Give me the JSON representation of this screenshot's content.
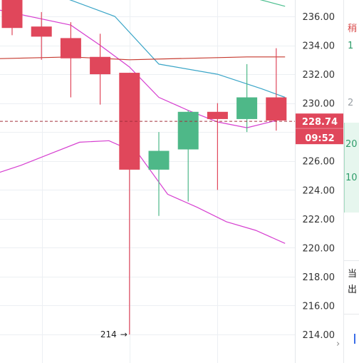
{
  "colors": {
    "up": "#4eb888",
    "down": "#e0475b",
    "boll_band": "#d63fd0",
    "ma_blue": "#3aa5c7",
    "ma_green": "#4cbf8f",
    "ma_red": "#c63a2f",
    "last_line": "#a3303c",
    "badge_bg": "#e0475b",
    "grid": "#eceff3",
    "axis_text": "#333333"
  },
  "chart_data": {
    "type": "candlestick",
    "title": "",
    "xlabel": "",
    "ylabel": "",
    "ylim": [
      213.3,
      238.6
    ],
    "yticks": [
      214,
      216,
      218,
      220,
      222,
      224,
      226,
      228,
      230,
      232,
      234,
      236
    ],
    "ytick_labels": [
      "214.00",
      "216.00",
      "218.00",
      "220.00",
      "222.00",
      "224.00",
      "226.00",
      "228.00",
      "230.00",
      "232.00",
      "234.00",
      "236.00"
    ],
    "grid": true,
    "candles": [
      {
        "index": 0,
        "open": 237.3,
        "high": 237.6,
        "low": 234.7,
        "close": 235.2
      },
      {
        "index": 1,
        "open": 235.3,
        "high": 236.3,
        "low": 233.0,
        "close": 234.6
      },
      {
        "index": 2,
        "open": 234.5,
        "high": 235.6,
        "low": 230.4,
        "close": 233.1
      },
      {
        "index": 3,
        "open": 233.2,
        "high": 234.8,
        "low": 229.9,
        "close": 232.0
      },
      {
        "index": 4,
        "open": 232.1,
        "high": 232.1,
        "low": 214.0,
        "close": 225.4
      },
      {
        "index": 5,
        "open": 225.4,
        "high": 228.0,
        "low": 222.2,
        "close": 226.7
      },
      {
        "index": 6,
        "open": 226.8,
        "high": 229.5,
        "low": 223.2,
        "close": 229.4
      },
      {
        "index": 7,
        "open": 229.4,
        "high": 230.0,
        "low": 224.0,
        "close": 228.9
      },
      {
        "index": 8,
        "open": 228.9,
        "high": 232.7,
        "low": 228.0,
        "close": 230.4
      },
      {
        "index": 9,
        "open": 230.4,
        "high": 233.8,
        "low": 228.1,
        "close": 228.8
      }
    ],
    "series": [
      {
        "role": "boll_upper",
        "x": [
          -2.2,
          2.0,
          3.0,
          4.0,
          5.0,
          6.0,
          7.0,
          8.0,
          9.0
        ],
        "values": [
          237.2,
          235.4,
          234.0,
          232.5,
          230.4,
          229.5,
          228.7,
          228.3,
          228.8
        ]
      },
      {
        "role": "boll_lower",
        "x": [
          -2.2,
          -1.4,
          -0.6,
          0.3,
          1.3,
          2.3,
          3.3,
          4.3,
          5.3,
          6.3,
          7.3,
          8.3,
          9.3
        ],
        "values": [
          224.2,
          224.6,
          225.1,
          225.7,
          226.5,
          227.3,
          227.4,
          226.5,
          223.7,
          222.8,
          221.8,
          221.2,
          220.3
        ]
      },
      {
        "role": "ma_blue",
        "x": [
          -0.6,
          1.1,
          3.5,
          5.0,
          7.0,
          8.5,
          9.3
        ],
        "values": [
          238.6,
          237.8,
          236.0,
          232.7,
          232.0,
          231.0,
          230.4
        ]
      },
      {
        "role": "ma_green",
        "x": [
          5.8,
          7.0,
          8.0,
          9.3
        ],
        "values": [
          238.6,
          237.9,
          237.4,
          236.7
        ]
      },
      {
        "role": "ma_red",
        "x": [
          -2.2,
          0.0,
          2.0,
          4.0,
          6.0,
          8.0,
          9.3
        ],
        "values": [
          233.0,
          233.1,
          233.2,
          233.0,
          233.1,
          233.2,
          233.2
        ]
      }
    ],
    "last_price": 228.74,
    "last_price_label": "228.74",
    "countdown": "09:52",
    "low_marker": {
      "candle_index": 4,
      "value": 214.0,
      "label": "214"
    }
  },
  "right_panel": {
    "fragments": [
      {
        "text": "稍",
        "color": "#d94a4a"
      },
      {
        "text": "1",
        "color": "#2e9c6a"
      },
      {
        "text": "2",
        "color": "#9aa0a6"
      },
      {
        "text": "20",
        "color": "#2e9c6a"
      },
      {
        "text": "10",
        "color": "#2e9c6a"
      },
      {
        "text": "当",
        "color": "#222222"
      },
      {
        "text": "出",
        "color": "#222222"
      }
    ]
  }
}
